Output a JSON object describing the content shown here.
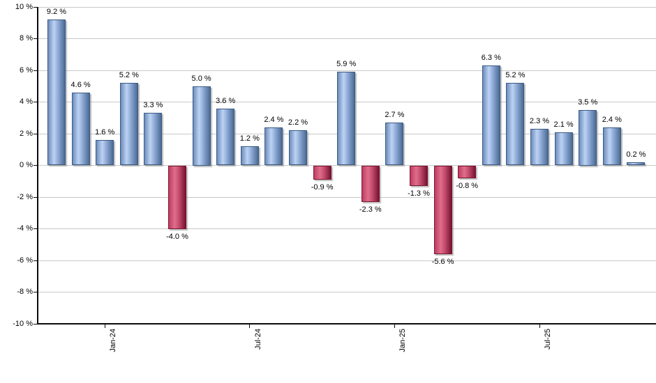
{
  "chart_data": {
    "type": "bar",
    "description": "Monthly percentage returns bar chart, positive months blue, negative months red",
    "values": [
      9.2,
      4.6,
      1.6,
      5.2,
      3.3,
      -4.0,
      5.0,
      3.6,
      1.2,
      2.4,
      2.2,
      -0.9,
      5.9,
      -2.3,
      2.7,
      -1.3,
      -5.6,
      -0.8,
      6.3,
      5.2,
      2.3,
      2.1,
      3.5,
      2.4,
      0.2
    ],
    "value_labels": [
      "9.2 %",
      "4.6 %",
      "1.6 %",
      "5.2 %",
      "3.3 %",
      "-4.0 %",
      "5.0 %",
      "3.6 %",
      "1.2 %",
      "2.4 %",
      "2.2 %",
      "-0.9 %",
      "5.9 %",
      "-2.3 %",
      "2.7 %",
      "-1.3 %",
      "-5.6 %",
      "-0.8 %",
      "6.3 %",
      "5.2 %",
      "2.3 %",
      "2.1 %",
      "3.5 %",
      "2.4 %",
      "0.2 %"
    ],
    "y_ticks": [
      {
        "value": 10,
        "label": "10 %"
      },
      {
        "value": 8,
        "label": "8 %"
      },
      {
        "value": 6,
        "label": "6 %"
      },
      {
        "value": 4,
        "label": "4 %"
      },
      {
        "value": 2,
        "label": "2 %"
      },
      {
        "value": 0,
        "label": "0 %"
      },
      {
        "value": -2,
        "label": "-2 %"
      },
      {
        "value": -4,
        "label": "-4 %"
      },
      {
        "value": -6,
        "label": "-6 %"
      },
      {
        "value": -8,
        "label": "-8 %"
      },
      {
        "value": -10,
        "label": "-10 %"
      }
    ],
    "x_axis_ticks": [
      {
        "label": "Jan-24",
        "bar_index": 2
      },
      {
        "label": "Jul-24",
        "bar_index": 8
      },
      {
        "label": "Jan-25",
        "bar_index": 14
      },
      {
        "label": "Jul-25",
        "bar_index": 20
      }
    ],
    "ylim": [
      -10,
      10
    ],
    "grid": true,
    "legend": null,
    "title": "",
    "colors": {
      "background": "#ffffff",
      "grid": "#c9c9c9",
      "axis": "#0a0a0a",
      "text": "#000000",
      "positive_bar": {
        "border": "#3b5a84",
        "edge": "#6d8cbb",
        "highlight": "#bdd3f4",
        "mid": "#8aa6d2",
        "dark": "#4a6b94"
      },
      "negative_bar": {
        "border": "#7d1634",
        "edge": "#bd3d63",
        "highlight": "#e06d8a",
        "mid": "#c04a6b",
        "dark": "#77122f"
      }
    }
  }
}
